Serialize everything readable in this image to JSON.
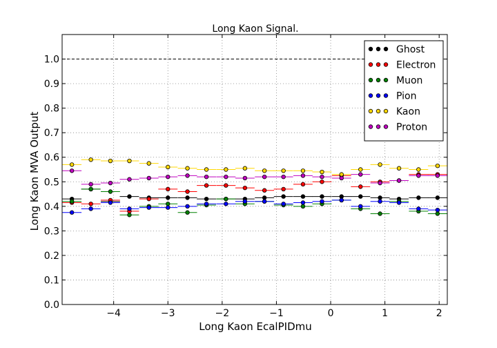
{
  "chart_data": {
    "type": "scatter",
    "title": "Long Kaon Signal.",
    "xlabel": "Long Kaon EcalPIDmu",
    "ylabel": "Long Kaon MVA Output",
    "xlim": [
      -4.95,
      2.15
    ],
    "ylim": [
      0.0,
      1.1
    ],
    "x_ticks": [
      -4,
      -3,
      -2,
      -1,
      0,
      1,
      2
    ],
    "x_tick_labels": [
      "−4",
      "−3",
      "−2",
      "−1",
      "0",
      "1",
      "2"
    ],
    "y_ticks": [
      0.0,
      0.1,
      0.2,
      0.3,
      0.4,
      0.5,
      0.6,
      0.7,
      0.8,
      0.9,
      1.0
    ],
    "y_tick_labels": [
      "0.0",
      "0.1",
      "0.2",
      "0.3",
      "0.4",
      "0.5",
      "0.6",
      "0.7",
      "0.8",
      "0.9",
      "1.0"
    ],
    "grid": true,
    "reference_line": 1.0,
    "legend_position": "top-right",
    "bin_width": 0.355,
    "x": [
      -4.77,
      -4.42,
      -4.06,
      -3.71,
      -3.35,
      -3.0,
      -2.64,
      -2.29,
      -1.93,
      -1.58,
      -1.22,
      -0.87,
      -0.51,
      -0.16,
      0.2,
      0.55,
      0.91,
      1.26,
      1.62,
      1.97
    ],
    "series": [
      {
        "name": "Ghost",
        "color": "#000000",
        "values": [
          0.43,
          0.47,
          0.42,
          0.44,
          0.435,
          0.435,
          0.435,
          0.43,
          0.43,
          0.43,
          0.435,
          0.44,
          0.44,
          0.44,
          0.44,
          0.44,
          0.435,
          0.43,
          0.435,
          0.435
        ]
      },
      {
        "name": "Electron",
        "color": "#ff0000",
        "values": [
          0.415,
          0.41,
          0.425,
          0.38,
          0.43,
          0.47,
          0.46,
          0.485,
          0.485,
          0.475,
          0.465,
          0.47,
          0.49,
          0.5,
          0.525,
          0.48,
          0.5,
          0.505,
          0.53,
          0.53
        ]
      },
      {
        "name": "Muon",
        "color": "#008000",
        "values": [
          0.42,
          0.47,
          0.46,
          0.365,
          0.4,
          0.41,
          0.375,
          0.405,
          0.43,
          0.41,
          0.42,
          0.405,
          0.4,
          0.41,
          0.425,
          0.39,
          0.37,
          0.42,
          0.38,
          0.37
        ]
      },
      {
        "name": "Pion",
        "color": "#0000ff",
        "values": [
          0.375,
          0.39,
          0.415,
          0.39,
          0.395,
          0.395,
          0.4,
          0.41,
          0.41,
          0.42,
          0.42,
          0.41,
          0.415,
          0.42,
          0.425,
          0.4,
          0.42,
          0.415,
          0.39,
          0.385
        ]
      },
      {
        "name": "Kaon",
        "color": "#ffd700",
        "values": [
          0.57,
          0.59,
          0.585,
          0.585,
          0.575,
          0.56,
          0.555,
          0.55,
          0.55,
          0.555,
          0.545,
          0.545,
          0.545,
          0.54,
          0.53,
          0.55,
          0.57,
          0.555,
          0.55,
          0.565
        ]
      },
      {
        "name": "Proton",
        "color": "#bf00bf",
        "values": [
          0.545,
          0.49,
          0.495,
          0.51,
          0.515,
          0.52,
          0.525,
          0.52,
          0.52,
          0.515,
          0.52,
          0.52,
          0.525,
          0.52,
          0.515,
          0.53,
          0.495,
          0.505,
          0.525,
          0.525
        ]
      }
    ]
  }
}
